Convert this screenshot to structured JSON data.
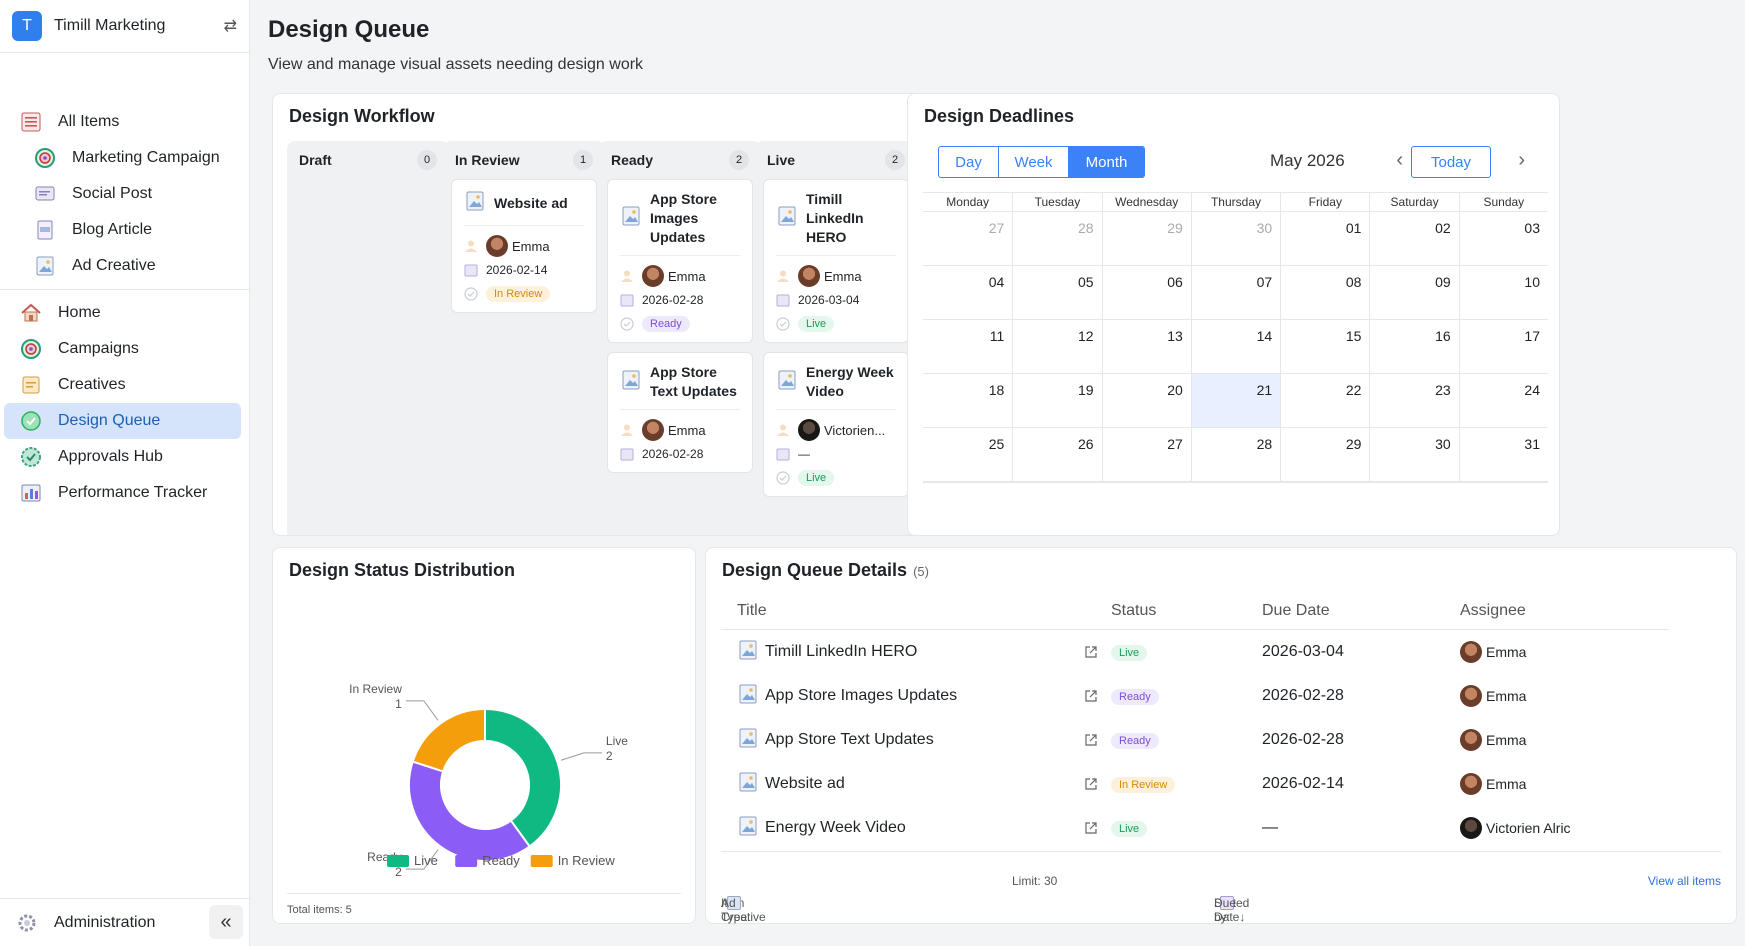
{
  "workspace": {
    "initial": "T",
    "name": "Timill Marketing"
  },
  "sidebar": {
    "group1": [
      {
        "label": "All Items",
        "icon": "list-icon",
        "sub": false
      },
      {
        "label": "Marketing Campaign",
        "icon": "target-icon",
        "sub": true
      },
      {
        "label": "Social Post",
        "icon": "chat-icon",
        "sub": true
      },
      {
        "label": "Blog Article",
        "icon": "document-icon",
        "sub": true
      },
      {
        "label": "Ad Creative",
        "icon": "image-icon",
        "sub": true
      }
    ],
    "group2": [
      {
        "label": "Home",
        "icon": "home-icon"
      },
      {
        "label": "Campaigns",
        "icon": "target-icon"
      },
      {
        "label": "Creatives",
        "icon": "notes-icon"
      },
      {
        "label": "Design Queue",
        "icon": "check-circle-icon",
        "active": true
      },
      {
        "label": "Approvals Hub",
        "icon": "badge-check-icon"
      },
      {
        "label": "Performance Tracker",
        "icon": "bar-chart-icon"
      }
    ],
    "admin_label": "Administration"
  },
  "page": {
    "title": "Design Queue",
    "subtitle": "View and manage visual assets needing design work"
  },
  "workflow": {
    "title": "Design Workflow",
    "columns": [
      {
        "name": "Draft",
        "count": "0",
        "cards": []
      },
      {
        "name": "In Review",
        "count": "1",
        "cards": [
          {
            "title": "Website ad",
            "assignee": "Emma",
            "due": "2026-02-14",
            "status": "In Review",
            "status_class": "b-review"
          }
        ]
      },
      {
        "name": "Ready",
        "count": "2",
        "cards": [
          {
            "title": "App Store Images Updates",
            "assignee": "Emma",
            "due": "2026-02-28",
            "status": "Ready",
            "status_class": "b-ready"
          },
          {
            "title": "App Store Text Updates",
            "assignee": "Emma",
            "due": "2026-02-28",
            "status": "",
            "status_class": ""
          }
        ]
      },
      {
        "name": "Live",
        "count": "2",
        "cards": [
          {
            "title": "Timill LinkedIn HERO",
            "assignee": "Emma",
            "due": "2026-03-04",
            "status": "Live",
            "status_class": "b-live"
          },
          {
            "title": "Energy Week Video",
            "assignee": "Victorien...",
            "due": "—",
            "status": "Live",
            "status_class": "b-live"
          }
        ]
      }
    ]
  },
  "calendar": {
    "title": "Design Deadlines",
    "views": [
      "Day",
      "Week",
      "Month"
    ],
    "active_view": "Month",
    "month_label": "May 2026",
    "today_label": "Today",
    "weekdays": [
      "Monday",
      "Tuesday",
      "Wednesday",
      "Thursday",
      "Friday",
      "Saturday",
      "Sunday"
    ],
    "days": [
      "27",
      "28",
      "29",
      "30",
      "01",
      "02",
      "03",
      "04",
      "05",
      "06",
      "07",
      "08",
      "09",
      "10",
      "11",
      "12",
      "13",
      "14",
      "15",
      "16",
      "17",
      "18",
      "19",
      "20",
      "21",
      "22",
      "23",
      "24",
      "25",
      "26",
      "27",
      "28",
      "29",
      "30",
      "31"
    ],
    "muted_count": 4,
    "today_day": "21"
  },
  "distribution": {
    "title": "Design Status Distribution",
    "total_label": "Total items: 5",
    "chart_data": {
      "type": "pie",
      "title": "Design Status Distribution",
      "categories": [
        "Live",
        "Ready",
        "In Review"
      ],
      "values": [
        2,
        2,
        1
      ],
      "colors": [
        "#10b981",
        "#8b5cf6",
        "#f59e0b"
      ],
      "donut": true,
      "legend": "bottom"
    }
  },
  "details": {
    "title": "Design Queue Details",
    "count": "(5)",
    "headers": [
      "Title",
      "Status",
      "Due Date",
      "Assignee"
    ],
    "rows": [
      {
        "title": "Timill LinkedIn HERO",
        "status": "Live",
        "status_class": "b-live",
        "due": "2026-03-04",
        "assignee": "Emma",
        "av": "av-emma"
      },
      {
        "title": "App Store Images Updates",
        "status": "Ready",
        "status_class": "b-ready",
        "due": "2026-02-28",
        "assignee": "Emma",
        "av": "av-emma"
      },
      {
        "title": "App Store Text Updates",
        "status": "Ready",
        "status_class": "b-ready",
        "due": "2026-02-28",
        "assignee": "Emma",
        "av": "av-emma"
      },
      {
        "title": "Website ad",
        "status": "In Review",
        "status_class": "b-review",
        "due": "2026-02-14",
        "assignee": "Emma",
        "av": "av-emma"
      },
      {
        "title": "Energy Week Video",
        "status": "Live",
        "status_class": "b-live",
        "due": "—",
        "assignee": "Victorien Alric",
        "av": "av-vic"
      }
    ],
    "footer": {
      "item_type_label": "Item Type:",
      "item_type_value": "Ad Creative",
      "limit": "Limit: 30",
      "sorted_label": "Sorted by:",
      "sorted_value": "Due Date↓",
      "view_all": "View all items"
    }
  }
}
